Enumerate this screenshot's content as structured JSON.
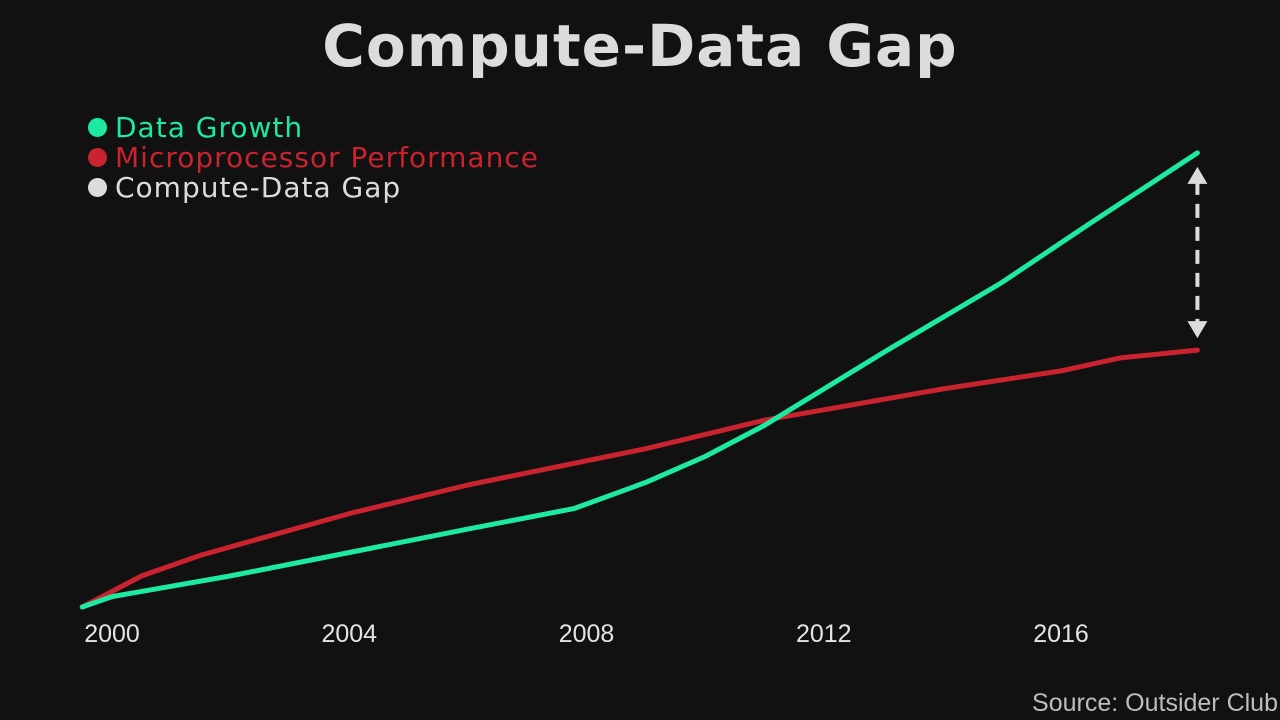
{
  "chart_data": {
    "type": "line",
    "title": "Compute-Data Gap",
    "xlabel": "",
    "ylabel": "",
    "xlim": [
      2000,
      2018
    ],
    "ylim": [
      0,
      10
    ],
    "x_ticks": [
      2000,
      2004,
      2008,
      2012,
      2016
    ],
    "x_tick_labels": [
      "2000",
      "2004",
      "2008",
      "2012",
      "2016"
    ],
    "grid": false,
    "legend_position": "top-left",
    "series": [
      {
        "name": "Data Growth",
        "color": "#1de9a0",
        "x": [
          1999.5,
          2000,
          2002,
          2004,
          2006,
          2007.8,
          2009,
          2010,
          2011,
          2012,
          2013,
          2015,
          2016.5,
          2018.3
        ],
        "y": [
          0,
          0.2,
          0.6,
          1.05,
          1.5,
          1.9,
          2.4,
          2.9,
          3.5,
          4.2,
          4.9,
          6.25,
          7.4,
          8.75
        ]
      },
      {
        "name": "Microprocessor Performance",
        "color": "#c8232e",
        "x": [
          1999.5,
          2000.5,
          2001.5,
          2004,
          2006,
          2009,
          2011,
          2012,
          2014,
          2016,
          2017,
          2018.3
        ],
        "y": [
          0,
          0.6,
          1.0,
          1.8,
          2.35,
          3.05,
          3.6,
          3.8,
          4.2,
          4.55,
          4.8,
          4.95
        ]
      }
    ],
    "annotations": [
      {
        "type": "gap-arrow",
        "label": "Compute-Data Gap",
        "x": 2018.3,
        "y_from": 4.95,
        "y_to": 8.75,
        "color": "#dcdcdc"
      }
    ]
  },
  "legend": {
    "items": [
      {
        "label": "Data Growth",
        "color": "#1de9a0"
      },
      {
        "label": "Microprocessor Performance",
        "color": "#c8232e"
      },
      {
        "label": "Compute-Data Gap",
        "color": "#dcdcdc"
      }
    ]
  },
  "source": "Source: Outsider Club"
}
